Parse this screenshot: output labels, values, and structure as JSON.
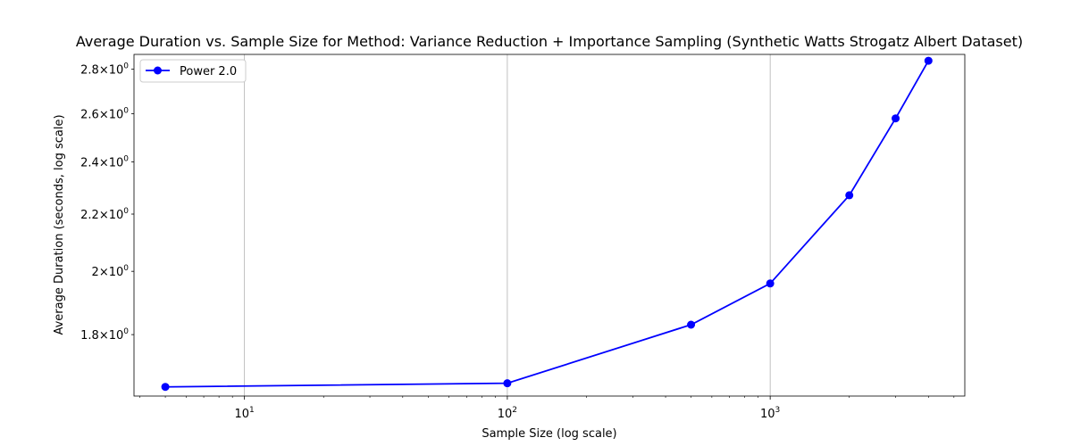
{
  "chart_data": {
    "type": "line",
    "title": "Average Duration vs. Sample Size for Method: Variance Reduction + Importance Sampling (Synthetic Watts Strogatz Albert Dataset)",
    "xlabel": "Sample Size (log scale)",
    "ylabel": "Average Duration (seconds, log scale)",
    "xscale": "log",
    "yscale": "log",
    "xlim": [
      3.8,
      5500
    ],
    "ylim": [
      1.625,
      2.87
    ],
    "grid": "x-major",
    "legend_position": "top-left",
    "x_ticks": [
      {
        "value": 10,
        "base": "10",
        "exp": "1"
      },
      {
        "value": 100,
        "base": "10",
        "exp": "2"
      },
      {
        "value": 1000,
        "base": "10",
        "exp": "3"
      }
    ],
    "y_ticks": [
      {
        "value": 1.8,
        "mantissa": "1.8",
        "base": "10",
        "exp": "0"
      },
      {
        "value": 2.0,
        "mantissa": "2",
        "base": "10",
        "exp": "0"
      },
      {
        "value": 2.2,
        "mantissa": "2.2",
        "base": "10",
        "exp": "0"
      },
      {
        "value": 2.4,
        "mantissa": "2.4",
        "base": "10",
        "exp": "0"
      },
      {
        "value": 2.6,
        "mantissa": "2.6",
        "base": "10",
        "exp": "0"
      },
      {
        "value": 2.8,
        "mantissa": "2.8",
        "base": "10",
        "exp": "0"
      }
    ],
    "series": [
      {
        "name": "Power 2.0",
        "color": "#0000ff",
        "marker": "circle",
        "x": [
          5,
          100,
          500,
          1000,
          2000,
          3000,
          4000
        ],
        "y": [
          1.65,
          1.66,
          1.83,
          1.96,
          2.27,
          2.58,
          2.84
        ]
      }
    ]
  }
}
